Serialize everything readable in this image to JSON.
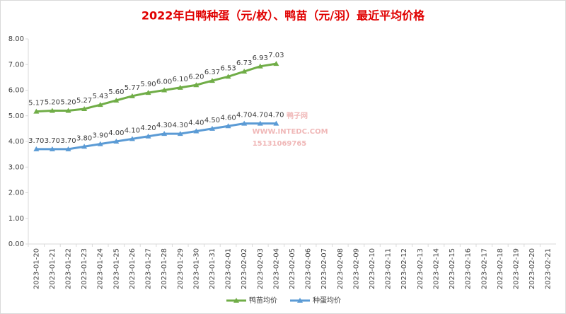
{
  "chart_data": {
    "type": "line",
    "title": "2022年白鸭种蛋（元/枚）、鸭苗（元/羽）最近平均价格",
    "watermark": [
      "鸭子网",
      "WWW.INTEDC.COM",
      "15131069765"
    ],
    "categories": [
      "2023-01-20",
      "2023-01-21",
      "2023-01-22",
      "2023-01-23",
      "2023-01-24",
      "2023-01-25",
      "2023-01-26",
      "2023-01-27",
      "2023-01-28",
      "2023-01-29",
      "2023-01-30",
      "2023-01-31",
      "2023-02-01",
      "2023-02-02",
      "2023-02-03",
      "2023-02-04",
      "2023-02-05",
      "2023-02-06",
      "2023-02-07",
      "2023-02-08",
      "2023-02-09",
      "2023-02-10",
      "2023-02-11",
      "2023-02-12",
      "2023-02-13",
      "2023-02-14",
      "2023-02-15",
      "2023-02-16",
      "2023-02-17",
      "2023-02-18",
      "2023-02-19",
      "2023-02-20",
      "2023-02-21"
    ],
    "series": [
      {
        "name": "鸭苗均价",
        "color": "#70ad47",
        "values": [
          5.17,
          5.2,
          5.2,
          5.27,
          5.43,
          5.6,
          5.77,
          5.9,
          6.0,
          6.1,
          6.2,
          6.37,
          6.53,
          6.73,
          6.93,
          7.03,
          null,
          null,
          null,
          null,
          null,
          null,
          null,
          null,
          null,
          null,
          null,
          null,
          null,
          null,
          null,
          null,
          null
        ],
        "value_labels": [
          "5.17",
          "5.20",
          "5.20",
          "5.27",
          "5.43",
          "5.60",
          "5.77",
          "5.90",
          "6.00",
          "6.10",
          "6.20",
          "6.37",
          "6.53",
          "6.73",
          "6.93",
          "7.03",
          null,
          null,
          null,
          null,
          null,
          null,
          null,
          null,
          null,
          null,
          null,
          null,
          null,
          null,
          null,
          null,
          null
        ]
      },
      {
        "name": "种蛋均价",
        "color": "#5b9bd5",
        "values": [
          3.7,
          3.7,
          3.7,
          3.8,
          3.9,
          4.0,
          4.1,
          4.2,
          4.3,
          4.3,
          4.4,
          4.5,
          4.6,
          4.7,
          4.7,
          4.7,
          null,
          null,
          null,
          null,
          null,
          null,
          null,
          null,
          null,
          null,
          null,
          null,
          null,
          null,
          null,
          null,
          null
        ],
        "value_labels": [
          "3.70",
          "3.70",
          "3.70",
          "3.80",
          "3.90",
          "4.00",
          "4.10",
          "4.20",
          "4.30",
          "4.30",
          "4.40",
          "4.50",
          "4.60",
          "4.70",
          "4.70",
          "4.70",
          null,
          null,
          null,
          null,
          null,
          null,
          null,
          null,
          null,
          null,
          null,
          null,
          null,
          null,
          null,
          null,
          null
        ]
      }
    ],
    "ylim": [
      0,
      8
    ],
    "yticks": [
      {
        "value": 0,
        "label": "0.00"
      },
      {
        "value": 1,
        "label": "1.00"
      },
      {
        "value": 2,
        "label": "2.00"
      },
      {
        "value": 3,
        "label": "3.00"
      },
      {
        "value": 4,
        "label": "4.00"
      },
      {
        "value": 5,
        "label": "5.00"
      },
      {
        "value": 6,
        "label": "6.00"
      },
      {
        "value": 7,
        "label": "7.00"
      },
      {
        "value": 8,
        "label": "8.00"
      }
    ],
    "grid": false,
    "legend": "bottom"
  }
}
